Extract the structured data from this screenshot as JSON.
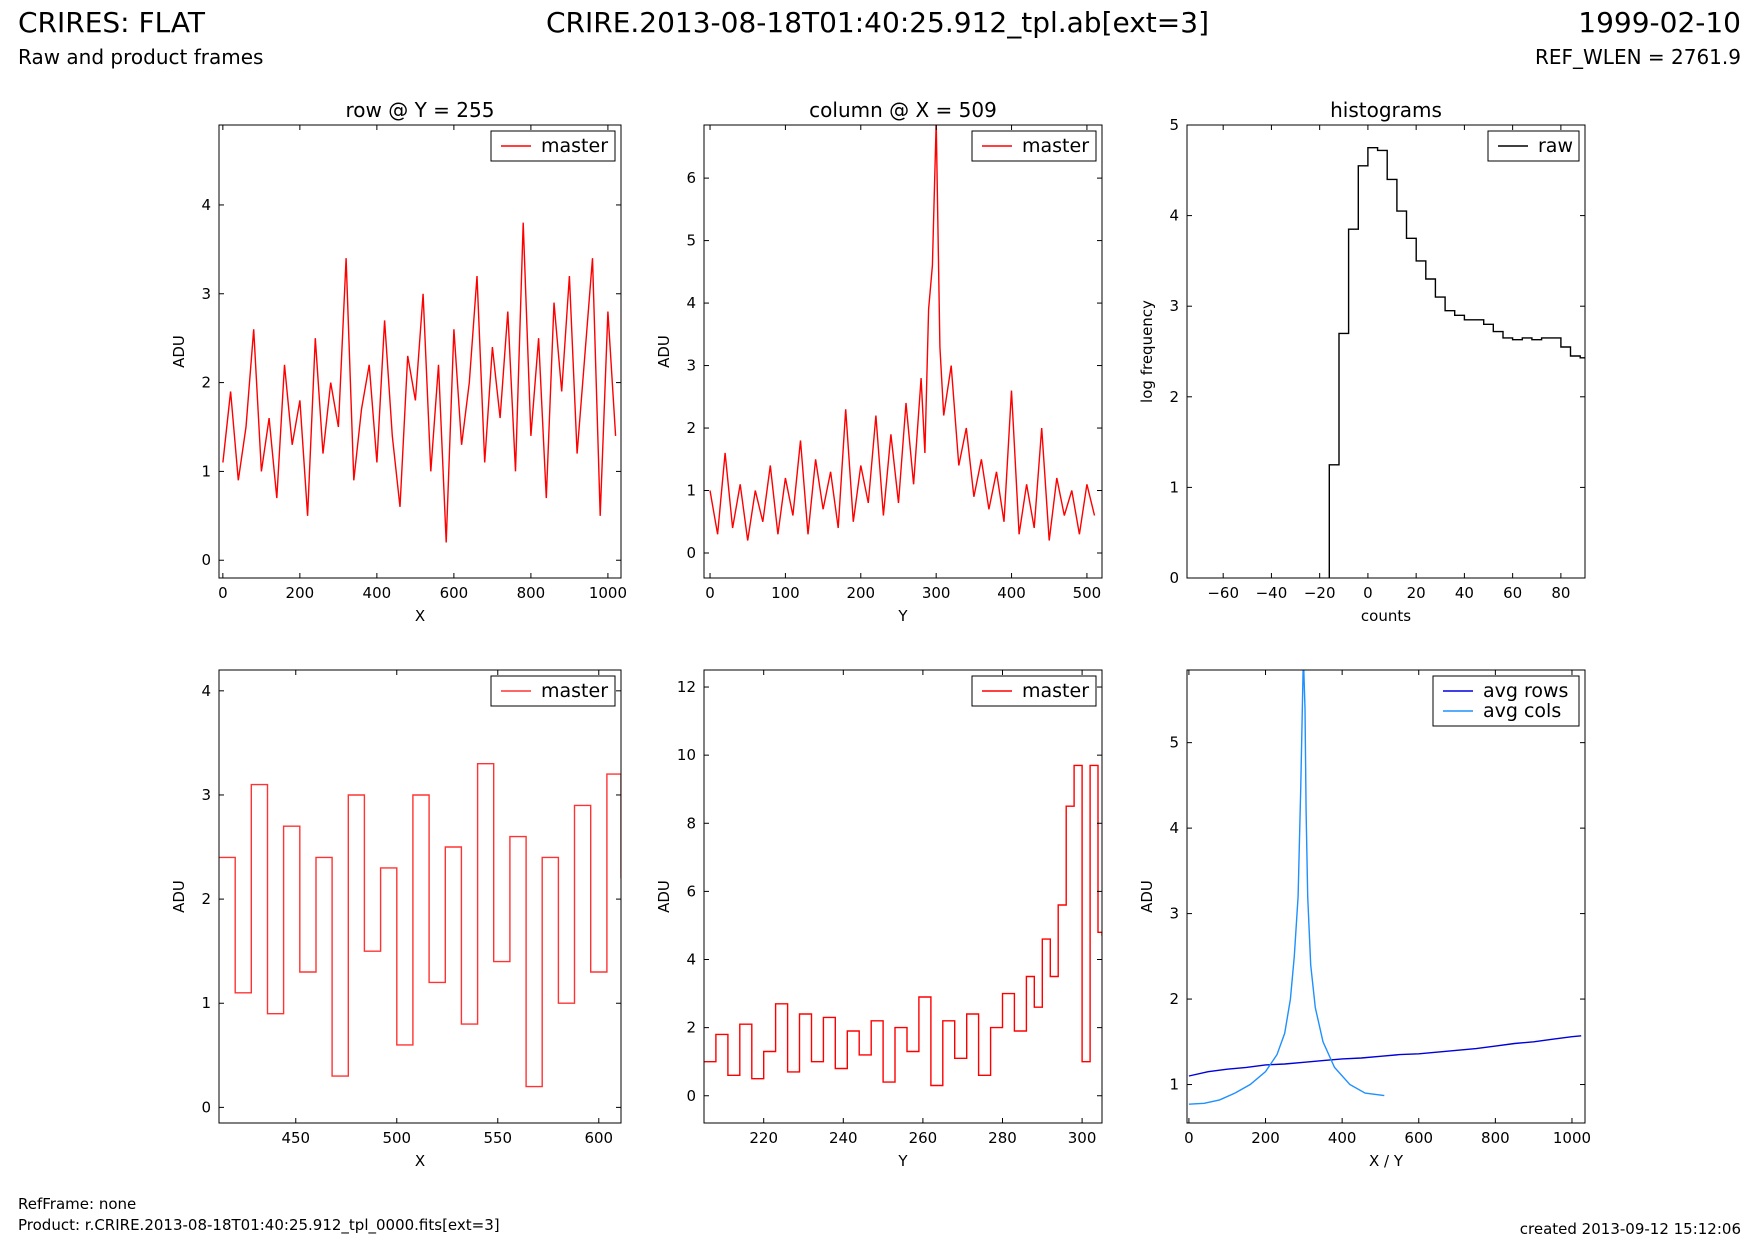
{
  "header": {
    "title": "CRIRES: FLAT",
    "subtitle": "Raw and product frames",
    "file": "CRIRE.2013-08-18T01:40:25.912_tpl.ab[ext=3]",
    "date": "1999-02-10",
    "ref_wlen": "REF_WLEN = 2761.9"
  },
  "footer": {
    "ref_frame": "RefFrame: none",
    "product": "Product: r.CRIRE.2013-08-18T01:40:25.912_tpl_0000.fits[ext=3]",
    "created": "created 2013-09-12 15:12:06"
  },
  "colors": {
    "master": "#ff0000",
    "master_zoom": "#ff3333",
    "raw": "#000000",
    "avg_rows": "#0000dd",
    "avg_cols": "#1e90ff"
  },
  "chart_data": [
    {
      "id": "row-plot",
      "type": "line",
      "title": "row @ Y = 255",
      "xlabel": "X",
      "ylabel": "ADU",
      "xlim": [
        -10,
        1034
      ],
      "ylim": [
        -0.2,
        4.9
      ],
      "xticks": [
        0,
        200,
        400,
        600,
        800,
        1000
      ],
      "yticks": [
        0,
        1,
        2,
        3,
        4
      ],
      "legend": "top-right",
      "series": [
        {
          "name": "master",
          "color": "#ff0000",
          "step": false,
          "x": [
            0,
            20,
            40,
            60,
            80,
            100,
            120,
            140,
            160,
            180,
            200,
            220,
            240,
            260,
            280,
            300,
            320,
            340,
            360,
            380,
            400,
            420,
            440,
            460,
            480,
            500,
            520,
            540,
            560,
            580,
            600,
            620,
            640,
            660,
            680,
            700,
            720,
            740,
            760,
            780,
            800,
            820,
            840,
            860,
            880,
            900,
            920,
            940,
            960,
            980,
            1000,
            1020
          ],
          "y": [
            1.1,
            1.9,
            0.9,
            1.5,
            2.6,
            1.0,
            1.6,
            0.7,
            2.2,
            1.3,
            1.8,
            0.5,
            2.5,
            1.2,
            2.0,
            1.5,
            3.4,
            0.9,
            1.7,
            2.2,
            1.1,
            2.7,
            1.4,
            0.6,
            2.3,
            1.8,
            3.0,
            1.0,
            2.2,
            0.2,
            2.6,
            1.3,
            2.0,
            3.2,
            1.1,
            2.4,
            1.6,
            2.8,
            1.0,
            3.8,
            1.4,
            2.5,
            0.7,
            2.9,
            1.9,
            3.2,
            1.2,
            2.3,
            3.4,
            0.5,
            2.8,
            1.4
          ]
        }
      ]
    },
    {
      "id": "col-plot",
      "type": "line",
      "title": "column @ X = 509",
      "xlabel": "Y",
      "ylabel": "ADU",
      "xlim": [
        -8,
        520
      ],
      "ylim": [
        -0.4,
        6.85
      ],
      "xticks": [
        0,
        100,
        200,
        300,
        400,
        500
      ],
      "yticks": [
        0,
        1,
        2,
        3,
        4,
        5,
        6
      ],
      "legend": "top-right",
      "series": [
        {
          "name": "master",
          "color": "#ff0000",
          "step": false,
          "x": [
            0,
            10,
            20,
            30,
            40,
            50,
            60,
            70,
            80,
            90,
            100,
            110,
            120,
            130,
            140,
            150,
            160,
            170,
            180,
            190,
            200,
            210,
            220,
            230,
            240,
            250,
            260,
            270,
            280,
            285,
            290,
            295,
            300,
            305,
            310,
            320,
            330,
            340,
            350,
            360,
            370,
            380,
            390,
            400,
            410,
            420,
            430,
            440,
            450,
            460,
            470,
            480,
            490,
            500,
            510
          ],
          "y": [
            1.0,
            0.3,
            1.6,
            0.4,
            1.1,
            0.2,
            1.0,
            0.5,
            1.4,
            0.3,
            1.2,
            0.6,
            1.8,
            0.3,
            1.5,
            0.7,
            1.3,
            0.4,
            2.3,
            0.5,
            1.4,
            0.8,
            2.2,
            0.6,
            1.9,
            0.8,
            2.4,
            1.1,
            2.8,
            1.6,
            3.9,
            4.6,
            6.9,
            3.3,
            2.2,
            3.0,
            1.4,
            2.0,
            0.9,
            1.5,
            0.7,
            1.3,
            0.5,
            2.6,
            0.3,
            1.1,
            0.4,
            2.0,
            0.2,
            1.2,
            0.6,
            1.0,
            0.3,
            1.1,
            0.6
          ]
        }
      ]
    },
    {
      "id": "hist-plot",
      "type": "line",
      "title": "histograms",
      "xlabel": "counts",
      "ylabel": "log frequency",
      "xlim": [
        -75,
        90
      ],
      "ylim": [
        0,
        5
      ],
      "xticks": [
        -60,
        -40,
        -20,
        0,
        20,
        40,
        60,
        80
      ],
      "yticks": [
        0,
        1,
        2,
        3,
        4,
        5
      ],
      "legend": "top-right",
      "series": [
        {
          "name": "raw",
          "color": "#000000",
          "step": true,
          "x": [
            -16,
            -12,
            -8,
            -4,
            0,
            4,
            8,
            12,
            16,
            20,
            24,
            28,
            32,
            36,
            40,
            44,
            48,
            52,
            56,
            60,
            64,
            68,
            72,
            76,
            80,
            84,
            88,
            90
          ],
          "y": [
            1.25,
            2.7,
            3.85,
            4.55,
            4.75,
            4.72,
            4.4,
            4.05,
            3.75,
            3.5,
            3.3,
            3.1,
            2.95,
            2.9,
            2.85,
            2.85,
            2.8,
            2.72,
            2.65,
            2.63,
            2.65,
            2.63,
            2.65,
            2.65,
            2.55,
            2.45,
            2.43,
            2.43
          ]
        }
      ]
    },
    {
      "id": "row-zoom-plot",
      "type": "line",
      "title": "",
      "xlabel": "X",
      "ylabel": "ADU",
      "xlim": [
        412,
        611
      ],
      "ylim": [
        -0.15,
        4.2
      ],
      "xticks": [
        450,
        500,
        550,
        600
      ],
      "yticks": [
        0,
        1,
        2,
        3,
        4
      ],
      "legend": "top-right",
      "series": [
        {
          "name": "master",
          "color": "#ff3333",
          "step": true,
          "x": [
            412,
            420,
            428,
            436,
            444,
            452,
            460,
            468,
            476,
            484,
            492,
            500,
            508,
            516,
            524,
            532,
            540,
            548,
            556,
            564,
            572,
            580,
            588,
            596,
            604,
            611
          ],
          "y": [
            2.4,
            1.1,
            3.1,
            0.9,
            2.7,
            1.3,
            2.4,
            0.3,
            3.0,
            1.5,
            2.3,
            0.6,
            3.0,
            1.2,
            2.5,
            0.8,
            3.3,
            1.4,
            2.6,
            0.2,
            2.4,
            1.0,
            2.9,
            1.3,
            3.2,
            2.2
          ]
        }
      ]
    },
    {
      "id": "col-zoom-plot",
      "type": "line",
      "title": "",
      "xlabel": "Y",
      "ylabel": "ADU",
      "xlim": [
        205,
        305
      ],
      "ylim": [
        -0.8,
        12.5
      ],
      "xticks": [
        220,
        240,
        260,
        280,
        300
      ],
      "yticks": [
        0,
        2,
        4,
        6,
        8,
        10,
        12
      ],
      "legend": "top-right",
      "series": [
        {
          "name": "master",
          "color": "#ff0000",
          "step": true,
          "x": [
            205,
            208,
            211,
            214,
            217,
            220,
            223,
            226,
            229,
            232,
            235,
            238,
            241,
            244,
            247,
            250,
            253,
            256,
            259,
            262,
            265,
            268,
            271,
            274,
            277,
            280,
            283,
            286,
            288,
            290,
            292,
            294,
            296,
            298,
            300,
            302,
            304,
            305
          ],
          "y": [
            1.0,
            1.8,
            0.6,
            2.1,
            0.5,
            1.3,
            2.7,
            0.7,
            2.4,
            1.0,
            2.3,
            0.8,
            1.9,
            1.2,
            2.2,
            0.4,
            2.0,
            1.3,
            2.9,
            0.3,
            2.2,
            1.1,
            2.4,
            0.6,
            2.0,
            3.0,
            1.9,
            3.5,
            2.6,
            4.6,
            3.5,
            5.6,
            8.5,
            9.7,
            1.0,
            9.7,
            4.8,
            4.7
          ]
        }
      ]
    },
    {
      "id": "avg-plot",
      "type": "line",
      "title": "",
      "xlabel": "X / Y",
      "ylabel": "ADU",
      "xlim": [
        -5,
        1034
      ],
      "ylim": [
        0.55,
        5.85
      ],
      "xticks": [
        0,
        200,
        400,
        600,
        800,
        1000
      ],
      "yticks": [
        1,
        2,
        3,
        4,
        5
      ],
      "legend": "top-right",
      "series": [
        {
          "name": "avg rows",
          "color": "#0000dd",
          "step": false,
          "x": [
            0,
            50,
            100,
            150,
            200,
            250,
            300,
            350,
            400,
            450,
            500,
            550,
            600,
            650,
            700,
            750,
            800,
            850,
            900,
            950,
            1000,
            1024
          ],
          "y": [
            1.1,
            1.15,
            1.18,
            1.2,
            1.23,
            1.24,
            1.26,
            1.28,
            1.3,
            1.31,
            1.33,
            1.35,
            1.36,
            1.38,
            1.4,
            1.42,
            1.45,
            1.48,
            1.5,
            1.53,
            1.56,
            1.57
          ]
        },
        {
          "name": "avg cols",
          "color": "#1e90ff",
          "step": false,
          "x": [
            0,
            40,
            80,
            120,
            160,
            200,
            230,
            250,
            265,
            275,
            285,
            292,
            298,
            300,
            303,
            306,
            310,
            318,
            330,
            350,
            380,
            420,
            460,
            510
          ],
          "y": [
            0.77,
            0.78,
            0.82,
            0.9,
            1.0,
            1.15,
            1.35,
            1.6,
            2.0,
            2.5,
            3.2,
            4.5,
            5.85,
            5.85,
            5.4,
            4.2,
            3.2,
            2.4,
            1.9,
            1.5,
            1.2,
            1.0,
            0.9,
            0.87
          ]
        }
      ]
    }
  ]
}
